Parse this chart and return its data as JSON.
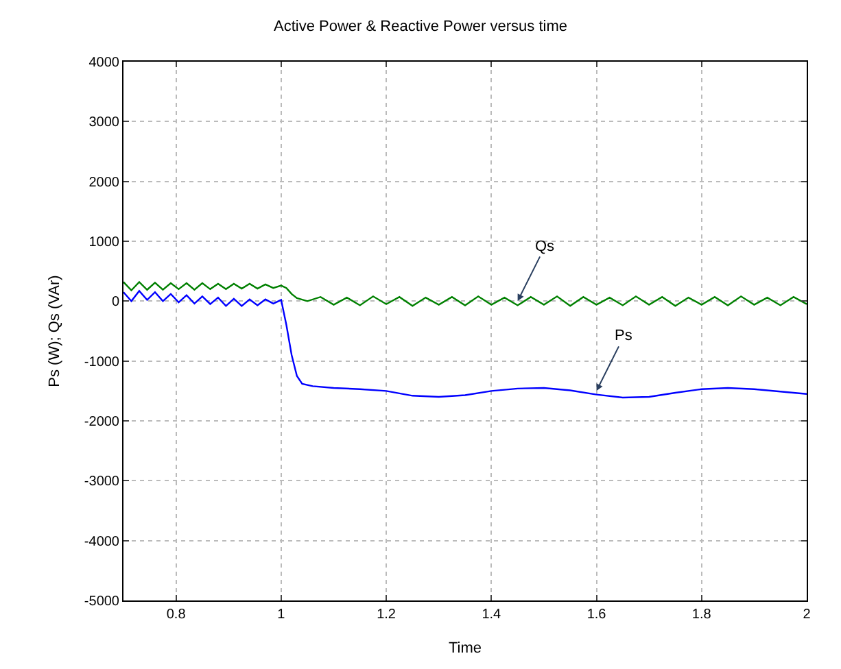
{
  "chart_data": {
    "type": "line",
    "title": "Active Power & Reactive Power versus time",
    "xlabel": "Time",
    "ylabel": "Ps (W); Qs (VAr)",
    "xlim": [
      0.7,
      2
    ],
    "xticks": [
      0.8,
      1,
      1.2,
      1.4,
      1.6,
      1.8,
      2
    ],
    "ylim": [
      -5000,
      4000
    ],
    "yticks": [
      -5000,
      -4000,
      -3000,
      -2000,
      -1000,
      0,
      1000,
      2000,
      3000,
      4000
    ],
    "grid": true,
    "line_style": "solid",
    "marker": "none",
    "series": [
      {
        "color": "#008000",
        "x": [
          0.7,
          0.715,
          0.73,
          0.745,
          0.76,
          0.775,
          0.79,
          0.805,
          0.82,
          0.835,
          0.85,
          0.865,
          0.88,
          0.895,
          0.91,
          0.925,
          0.94,
          0.955,
          0.97,
          0.985,
          1.0,
          1.01,
          1.02,
          1.03,
          1.05,
          1.075,
          1.1,
          1.125,
          1.15,
          1.175,
          1.2,
          1.225,
          1.25,
          1.275,
          1.3,
          1.325,
          1.35,
          1.375,
          1.4,
          1.425,
          1.45,
          1.475,
          1.5,
          1.525,
          1.55,
          1.575,
          1.6,
          1.625,
          1.65,
          1.675,
          1.7,
          1.725,
          1.75,
          1.775,
          1.8,
          1.825,
          1.85,
          1.875,
          1.9,
          1.925,
          1.95,
          1.975,
          2.0
        ],
        "values": [
          320,
          180,
          320,
          190,
          310,
          190,
          300,
          200,
          300,
          190,
          300,
          200,
          290,
          200,
          290,
          210,
          290,
          210,
          280,
          220,
          260,
          220,
          120,
          50,
          0,
          70,
          -60,
          60,
          -70,
          80,
          -50,
          70,
          -80,
          60,
          -60,
          70,
          -70,
          80,
          -60,
          60,
          -70,
          70,
          -60,
          80,
          -80,
          70,
          -60,
          60,
          -70,
          80,
          -60,
          70,
          -80,
          60,
          -60,
          70,
          -70,
          80,
          -60,
          60,
          -70,
          70,
          -50
        ]
      },
      {
        "color": "#0000ff",
        "x": [
          0.7,
          0.715,
          0.73,
          0.745,
          0.76,
          0.775,
          0.79,
          0.805,
          0.82,
          0.835,
          0.85,
          0.865,
          0.88,
          0.895,
          0.91,
          0.925,
          0.94,
          0.955,
          0.97,
          0.985,
          1.0,
          1.01,
          1.02,
          1.03,
          1.04,
          1.06,
          1.1,
          1.15,
          1.2,
          1.25,
          1.3,
          1.35,
          1.4,
          1.45,
          1.5,
          1.55,
          1.6,
          1.65,
          1.7,
          1.75,
          1.8,
          1.85,
          1.9,
          1.95,
          2.0
        ],
        "values": [
          150,
          0,
          170,
          20,
          150,
          0,
          120,
          -20,
          100,
          -40,
          80,
          -50,
          60,
          -80,
          40,
          -80,
          30,
          -70,
          30,
          -40,
          20,
          -400,
          -900,
          -1250,
          -1380,
          -1420,
          -1450,
          -1470,
          -1500,
          -1580,
          -1600,
          -1570,
          -1500,
          -1460,
          -1450,
          -1490,
          -1560,
          -1610,
          -1600,
          -1530,
          -1470,
          -1450,
          -1470,
          -1510,
          -1550
        ]
      }
    ],
    "annotations": [
      {
        "text": "Qs",
        "x": 1.45,
        "y": 0
      },
      {
        "text": "Ps",
        "x": 1.6,
        "y": -1500
      }
    ]
  }
}
